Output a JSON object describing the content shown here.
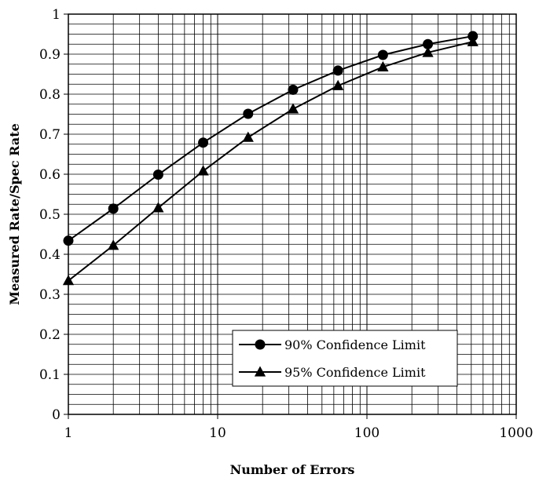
{
  "chart_data": {
    "type": "line",
    "title": "",
    "xlabel": "Number of Errors",
    "ylabel": "Measured Rate/Spec Rate",
    "x_scale": "log",
    "xlim": [
      1,
      1000
    ],
    "ylim": [
      0,
      1
    ],
    "x_ticks": [
      1,
      10,
      100,
      1000
    ],
    "x_tick_labels": [
      "1",
      "10",
      "100",
      "1000"
    ],
    "y_ticks": [
      0,
      0.1,
      0.2,
      0.3,
      0.4,
      0.5,
      0.6,
      0.7,
      0.8,
      0.9,
      1
    ],
    "y_tick_labels": [
      "0",
      "0.1",
      "0.2",
      "0.3",
      "0.4",
      "0.5",
      "0.6",
      "0.7",
      "0.8",
      "0.9",
      "1"
    ],
    "grid": true,
    "legend_position": "bottom-right",
    "x": [
      1,
      2,
      4,
      8,
      16,
      32,
      64,
      128,
      256,
      512
    ],
    "series": [
      {
        "name": "90% Confidence Limit",
        "marker": "circle",
        "color": "#000000",
        "values": [
          0.434,
          0.514,
          0.599,
          0.679,
          0.751,
          0.811,
          0.859,
          0.898,
          0.925,
          0.945
        ]
      },
      {
        "name": "95% Confidence Limit",
        "marker": "triangle",
        "color": "#000000",
        "values": [
          0.334,
          0.422,
          0.516,
          0.608,
          0.692,
          0.763,
          0.821,
          0.868,
          0.904,
          0.931
        ]
      }
    ]
  }
}
